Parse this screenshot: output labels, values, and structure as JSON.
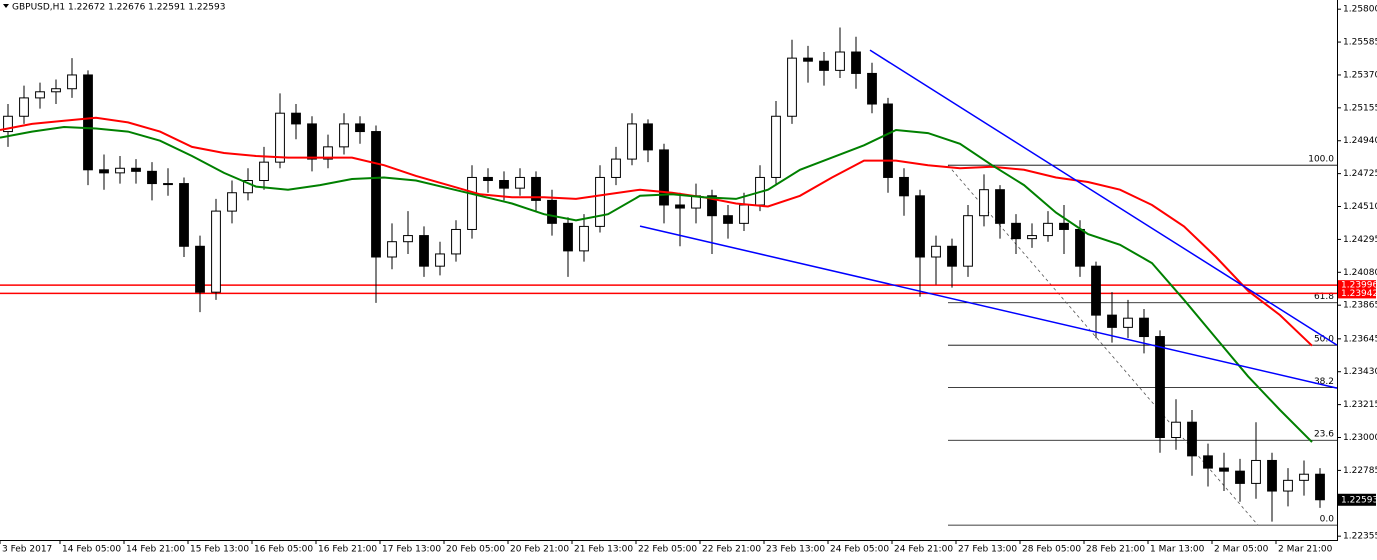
{
  "chart_data": {
    "type": "candlestick",
    "title": "GBPUSD,H1  1.22672 1.22676 1.22591 1.22593",
    "xlim": [
      0,
      334.25
    ],
    "ylim": [
      1.2233,
      1.2586
    ],
    "yticks": [
      {
        "value": 1.258,
        "label": "1.25800"
      },
      1.25585,
      {
        "value": 1.2537,
        "label": "1.25370"
      },
      1.25155,
      {
        "value": 1.2494,
        "label": "1.24940"
      },
      1.24725,
      {
        "value": 1.2451,
        "label": "1.24510"
      },
      1.24295,
      {
        "value": 1.2408,
        "label": "1.24080"
      },
      1.23865,
      1.23645,
      {
        "value": 1.2343,
        "label": "1.23430"
      },
      1.23215,
      {
        "value": 1.23,
        "label": "1.23000"
      },
      1.22785,
      1.22355
    ],
    "xticks": [
      {
        "value": 0,
        "label": "3 Feb 2017"
      },
      {
        "value": 15,
        "label": "14 Feb 05:00"
      },
      {
        "value": 31,
        "label": "14 Feb 21:00"
      },
      {
        "value": 47,
        "label": "15 Feb 13:00"
      },
      {
        "value": 63,
        "label": "16 Feb 05:00"
      },
      {
        "value": 79,
        "label": "16 Feb 21:00"
      },
      {
        "value": 95,
        "label": "17 Feb 13:00"
      },
      {
        "value": 111,
        "label": "20 Feb 05:00"
      },
      {
        "value": 127,
        "label": "20 Feb 21:00"
      },
      {
        "value": 143,
        "label": "21 Feb 13:00"
      },
      {
        "value": 159,
        "label": "22 Feb 05:00"
      },
      {
        "value": 175,
        "label": "22 Feb 21:00"
      },
      {
        "value": 191,
        "label": "23 Feb 13:00"
      },
      {
        "value": 207,
        "label": "24 Feb 05:00"
      },
      {
        "value": 223,
        "label": "24 Feb 21:00"
      },
      {
        "value": 239,
        "label": "27 Feb 13:00"
      },
      {
        "value": 255,
        "label": "28 Feb 05:00"
      },
      {
        "value": 271,
        "label": "28 Feb 21:00"
      },
      {
        "value": 287,
        "label": "1 Mar 13:00"
      },
      {
        "value": 303,
        "label": "2 Mar 05:00"
      },
      {
        "value": 319,
        "label": "2 Mar 21:00"
      }
    ],
    "candle_color": "#000000",
    "x": [
      2,
      6,
      10,
      14,
      18,
      22,
      26,
      30,
      34,
      38,
      42,
      46,
      50,
      54,
      58,
      62,
      66,
      70,
      74,
      78,
      82,
      86,
      90,
      94,
      98,
      102,
      106,
      110,
      114,
      118,
      122,
      126,
      130,
      134,
      138,
      142,
      146,
      150,
      154,
      158,
      162,
      166,
      170,
      174,
      178,
      182,
      186,
      190,
      194,
      198,
      202,
      206,
      210,
      214,
      218,
      222,
      226,
      230,
      234,
      238,
      242,
      246,
      250,
      254,
      258,
      262,
      266,
      270,
      274,
      278,
      282,
      286,
      290,
      294,
      298,
      302,
      306,
      310,
      314,
      318,
      322,
      326,
      330
    ],
    "open": [
      1.25,
      1.251,
      1.2522,
      1.2526,
      1.2528,
      1.2537,
      1.2475,
      1.2473,
      1.2476,
      1.2474,
      1.2466,
      1.2466,
      1.2425,
      1.2395,
      1.2448,
      1.246,
      1.2468,
      1.248,
      1.2512,
      1.2505,
      1.2482,
      1.249,
      1.2505,
      1.25,
      1.2418,
      1.2428,
      1.2432,
      1.2412,
      1.242,
      1.2436,
      1.247,
      1.2468,
      1.2463,
      1.247,
      1.2455,
      1.244,
      1.2422,
      1.2438,
      1.247,
      1.2482,
      1.2505,
      1.2488,
      1.2452,
      1.245,
      1.2458,
      1.2445,
      1.244,
      1.2452,
      1.247,
      1.251,
      1.2548,
      1.2546,
      1.254,
      1.2552,
      1.2538,
      1.2518,
      1.247,
      1.2458,
      1.2418,
      1.2425,
      1.2412,
      1.2445,
      1.2462,
      1.244,
      1.243,
      1.2432,
      1.244,
      1.2436,
      1.2412,
      1.238,
      1.2372,
      1.2378,
      1.2366,
      1.23,
      1.231,
      1.2288,
      1.228,
      1.2278,
      1.227,
      1.2285,
      1.2265,
      1.2272,
      1.2276
    ],
    "high": [
      1.2518,
      1.253,
      1.2532,
      1.2534,
      1.2548,
      1.254,
      1.2485,
      1.2484,
      1.2482,
      1.248,
      1.2476,
      1.247,
      1.2432,
      1.2456,
      1.2468,
      1.2476,
      1.249,
      1.2525,
      1.2518,
      1.251,
      1.2498,
      1.2512,
      1.251,
      1.2504,
      1.244,
      1.2448,
      1.2438,
      1.2428,
      1.2442,
      1.2478,
      1.2476,
      1.2474,
      1.2476,
      1.2474,
      1.2462,
      1.2444,
      1.2446,
      1.2478,
      1.249,
      1.2512,
      1.2508,
      1.2492,
      1.246,
      1.2466,
      1.2462,
      1.2452,
      1.246,
      1.2478,
      1.252,
      1.256,
      1.2556,
      1.2552,
      1.2568,
      1.2562,
      1.2545,
      1.2522,
      1.2476,
      1.2462,
      1.2432,
      1.243,
      1.2452,
      1.2472,
      1.2465,
      1.2446,
      1.244,
      1.2448,
      1.2452,
      1.2442,
      1.2415,
      1.2395,
      1.239,
      1.2384,
      1.237,
      1.2325,
      1.2318,
      1.2296,
      1.229,
      1.2286,
      1.231,
      1.229,
      1.228,
      1.2285,
      1.228
    ],
    "low": [
      1.249,
      1.2505,
      1.2515,
      1.2518,
      1.2522,
      1.2465,
      1.2462,
      1.2466,
      1.2466,
      1.2455,
      1.2458,
      1.2418,
      1.2382,
      1.239,
      1.244,
      1.2455,
      1.2462,
      1.2476,
      1.2495,
      1.2474,
      1.2476,
      1.2485,
      1.2492,
      1.2388,
      1.241,
      1.242,
      1.2405,
      1.2406,
      1.2415,
      1.243,
      1.246,
      1.2455,
      1.2458,
      1.2448,
      1.2432,
      1.2405,
      1.2415,
      1.2434,
      1.2465,
      1.2478,
      1.248,
      1.244,
      1.2425,
      1.244,
      1.242,
      1.243,
      1.2435,
      1.2448,
      1.2465,
      1.2505,
      1.2532,
      1.253,
      1.2535,
      1.2528,
      1.2512,
      1.246,
      1.2445,
      1.2392,
      1.24,
      1.2398,
      1.2405,
      1.2438,
      1.243,
      1.242,
      1.2424,
      1.2428,
      1.242,
      1.2405,
      1.2365,
      1.2362,
      1.2365,
      1.2355,
      1.229,
      1.2292,
      1.2275,
      1.2268,
      1.2265,
      1.2258,
      1.226,
      1.2245,
      1.2255,
      1.2262,
      1.2254
    ],
    "close": [
      1.251,
      1.2522,
      1.2526,
      1.2528,
      1.2537,
      1.2475,
      1.2473,
      1.2476,
      1.2474,
      1.2466,
      1.2466,
      1.2425,
      1.2395,
      1.2448,
      1.246,
      1.2468,
      1.248,
      1.2512,
      1.2505,
      1.2482,
      1.249,
      1.2505,
      1.25,
      1.2418,
      1.2428,
      1.2432,
      1.2412,
      1.242,
      1.2436,
      1.247,
      1.2468,
      1.2463,
      1.247,
      1.2455,
      1.244,
      1.2422,
      1.2438,
      1.247,
      1.2482,
      1.2505,
      1.2488,
      1.2452,
      1.245,
      1.2458,
      1.2445,
      1.244,
      1.2452,
      1.247,
      1.251,
      1.2548,
      1.2546,
      1.254,
      1.2552,
      1.2538,
      1.2518,
      1.247,
      1.2458,
      1.2418,
      1.2425,
      1.2412,
      1.2445,
      1.2462,
      1.244,
      1.243,
      1.2432,
      1.244,
      1.2436,
      1.2412,
      1.238,
      1.2372,
      1.2378,
      1.2366,
      1.23,
      1.231,
      1.2288,
      1.228,
      1.2278,
      1.227,
      1.2285,
      1.2265,
      1.2272,
      1.2276,
      1.22593
    ],
    "moving_averages": [
      {
        "color": "#ff0000",
        "x": [
          0,
          8,
          16,
          24,
          32,
          40,
          48,
          56,
          64,
          72,
          80,
          88,
          96,
          104,
          112,
          120,
          128,
          136,
          144,
          152,
          160,
          168,
          176,
          184,
          192,
          200,
          208,
          216,
          224,
          232,
          240,
          248,
          256,
          264,
          272,
          280,
          288,
          296,
          304,
          312,
          320,
          328
        ],
        "values": [
          1.2501,
          1.2505,
          1.2507,
          1.2509,
          1.2506,
          1.25,
          1.249,
          1.2486,
          1.2484,
          1.2483,
          1.2483,
          1.2483,
          1.2478,
          1.2471,
          1.2465,
          1.2459,
          1.2457,
          1.2457,
          1.2456,
          1.2459,
          1.2462,
          1.246,
          1.2457,
          1.2453,
          1.2451,
          1.2458,
          1.247,
          1.2481,
          1.2481,
          1.2478,
          1.2476,
          1.2477,
          1.2475,
          1.247,
          1.2467,
          1.2462,
          1.2452,
          1.2438,
          1.2418,
          1.2396,
          1.238,
          1.236
        ]
      },
      {
        "color": "#008000",
        "x": [
          0,
          8,
          16,
          24,
          32,
          40,
          48,
          56,
          64,
          72,
          80,
          88,
          96,
          104,
          112,
          120,
          128,
          136,
          144,
          152,
          160,
          168,
          176,
          184,
          192,
          200,
          208,
          216,
          224,
          232,
          240,
          248,
          256,
          264,
          272,
          280,
          288,
          296,
          304,
          312,
          320,
          328
        ],
        "values": [
          1.2496,
          1.25,
          1.2503,
          1.2502,
          1.25,
          1.2494,
          1.2484,
          1.2473,
          1.2464,
          1.2462,
          1.2465,
          1.2469,
          1.247,
          1.2468,
          1.2463,
          1.2458,
          1.2453,
          1.2446,
          1.2442,
          1.2446,
          1.2458,
          1.2459,
          1.2457,
          1.2456,
          1.2462,
          1.2475,
          1.2483,
          1.2491,
          1.2501,
          1.2499,
          1.2492,
          1.2478,
          1.2465,
          1.2447,
          1.2433,
          1.2426,
          1.2414,
          1.239,
          1.2365,
          1.234,
          1.2318,
          1.2297
        ]
      }
    ],
    "trendlines": [
      {
        "color": "#0000ff",
        "x": [
          217.5,
          334.25
        ],
        "y": [
          1.25532,
          1.23604
        ]
      },
      {
        "color": "#0000ff",
        "x": [
          160,
          334.25
        ],
        "y": [
          1.24382,
          1.23323
        ]
      }
    ],
    "hlines": [
      {
        "value": 1.23996,
        "color": "#ff0000"
      },
      {
        "value": 1.23942,
        "color": "#ff0000"
      }
    ],
    "last_price": 1.22593,
    "fibonacci": {
      "color": "#000000",
      "x_start": 237,
      "diagonal_x": [
        237,
        314.5
      ],
      "price_high": 1.2478,
      "price_low": 1.22427,
      "levels": [
        {
          "value": 100,
          "label": "100.0"
        },
        {
          "value": 61.8,
          "label": "61.8"
        },
        {
          "value": 50,
          "label": "50.0"
        },
        {
          "value": 38.2,
          "label": "38.2"
        },
        {
          "value": 23.6,
          "label": "23.6"
        },
        {
          "value": 0,
          "label": "0.0"
        }
      ]
    }
  }
}
